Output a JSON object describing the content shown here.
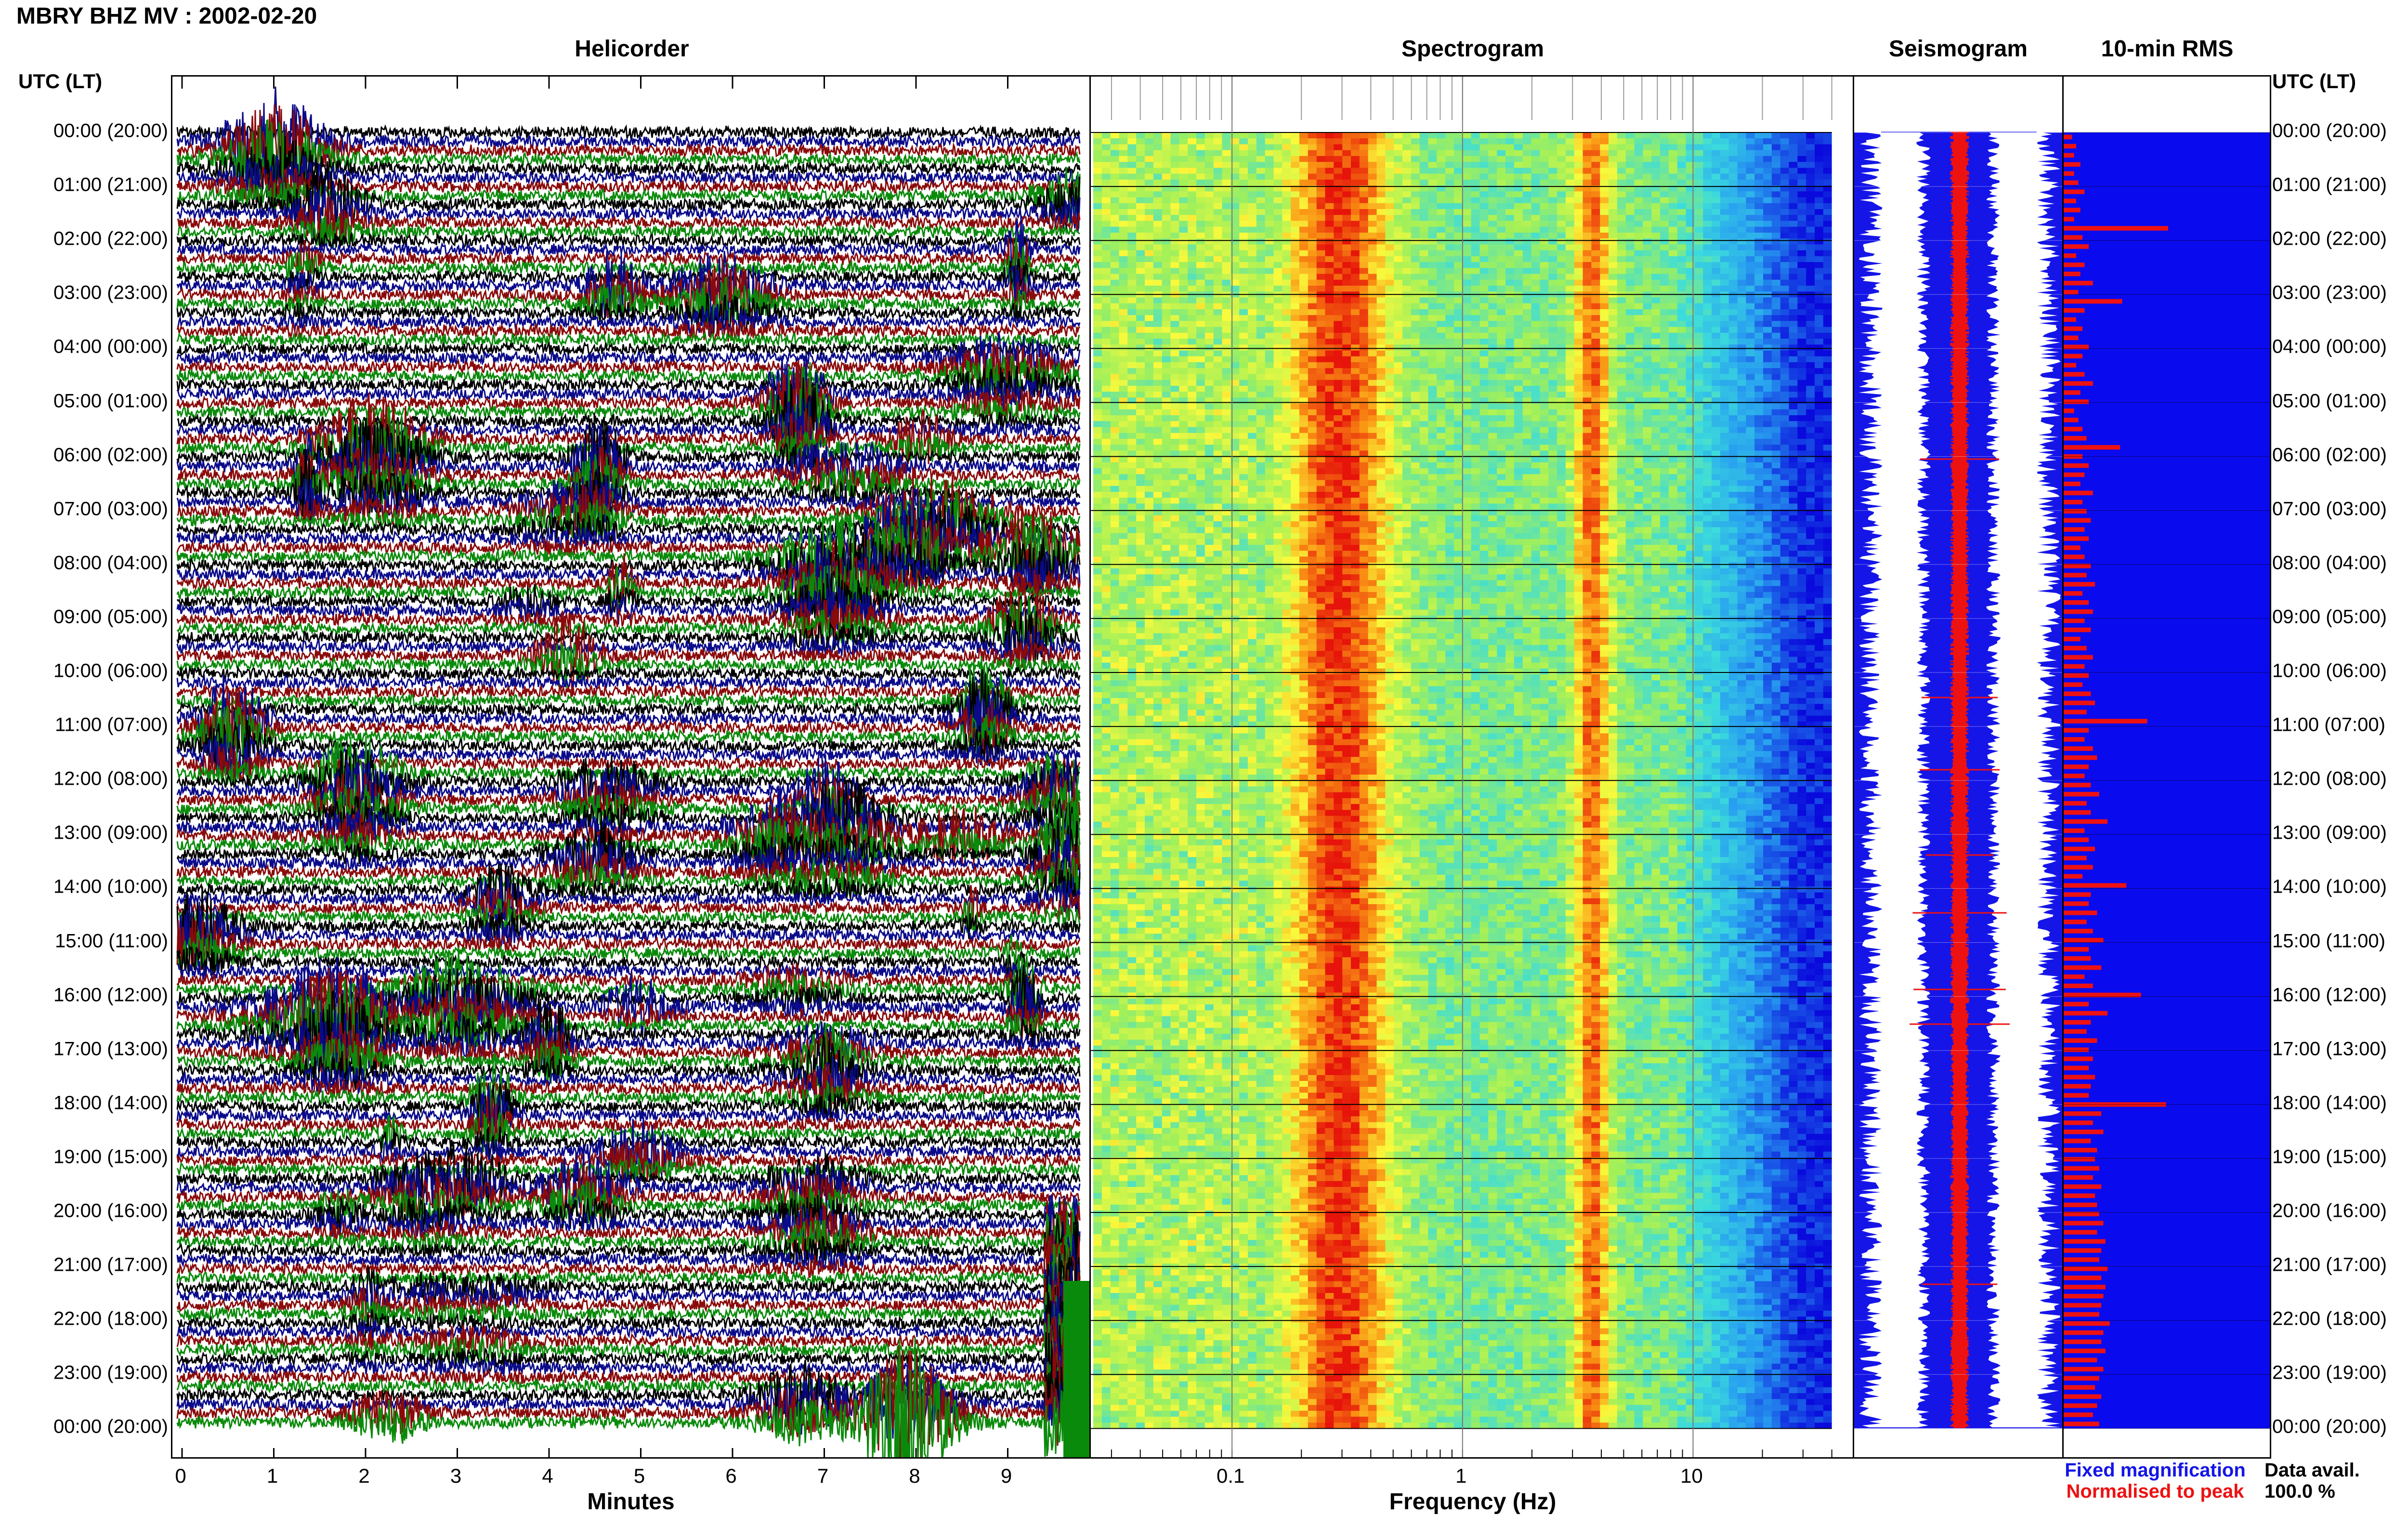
{
  "page": {
    "title": "MBRY BHZ MV : 2002-02-20"
  },
  "panels": {
    "helicorder": {
      "title": "Helicorder",
      "xlabel": "Minutes"
    },
    "spectrogram": {
      "title": "Spectrogram",
      "xlabel": "Frequency (Hz)"
    },
    "seismogram": {
      "title": "Seismogram"
    },
    "rms": {
      "title": "10-min RMS"
    }
  },
  "time_axis": {
    "header_left": "UTC (LT)",
    "header_right": "UTC (LT)",
    "labels": [
      "00:00 (20:00)",
      "01:00 (21:00)",
      "02:00 (22:00)",
      "03:00 (23:00)",
      "04:00 (00:00)",
      "05:00 (01:00)",
      "06:00 (02:00)",
      "07:00 (03:00)",
      "08:00 (04:00)",
      "09:00 (05:00)",
      "10:00 (06:00)",
      "11:00 (07:00)",
      "12:00 (08:00)",
      "13:00 (09:00)",
      "14:00 (10:00)",
      "15:00 (11:00)",
      "16:00 (12:00)",
      "17:00 (13:00)",
      "18:00 (14:00)",
      "19:00 (15:00)",
      "20:00 (16:00)",
      "21:00 (17:00)",
      "22:00 (18:00)",
      "23:00 (19:00)",
      "00:00 (20:00)"
    ]
  },
  "legend": {
    "fixed": "Fixed magnification",
    "fixed_color": "#1515e8",
    "normalised": "Normalised to peak",
    "normalised_color": "#ee1111",
    "avail_label": "Data avail.",
    "avail_value": "100.0 %"
  },
  "chart_data": [
    {
      "type": "line",
      "name": "helicorder",
      "xlabel": "Minutes",
      "xlim": [
        0,
        10
      ],
      "xticks": [
        0,
        1,
        2,
        3,
        4,
        5,
        6,
        7,
        8,
        9
      ],
      "trace_colors": [
        "#000000",
        "#0a0a8a",
        "#8a0a0a",
        "#0a8a0a"
      ]
    },
    {
      "type": "heatmap",
      "name": "spectrogram",
      "xlabel": "Frequency (Hz)",
      "xscale": "log",
      "xlim": [
        0.025,
        50
      ],
      "xticks": [
        0.1,
        1,
        10
      ],
      "xtick_labels": [
        "0.1",
        "1",
        "10"
      ]
    },
    {
      "type": "line",
      "name": "seismogram",
      "series": [
        {
          "name": "Fixed magnification",
          "color": "#1515e8"
        },
        {
          "name": "Normalised to peak",
          "color": "#ee1111"
        }
      ]
    },
    {
      "type": "bar",
      "name": "10-min RMS",
      "orientation": "horizontal",
      "background": "#0a0aee",
      "bar_color": "#ee1111",
      "xlim": [
        0,
        1
      ],
      "values": [
        0.04,
        0.06,
        0.05,
        0.08,
        0.05,
        0.07,
        0.1,
        0.06,
        0.08,
        0.05,
        0.5,
        0.09,
        0.12,
        0.06,
        0.1,
        0.08,
        0.14,
        0.07,
        0.28,
        0.1,
        0.06,
        0.09,
        0.07,
        0.12,
        0.09,
        0.06,
        0.1,
        0.14,
        0.08,
        0.12,
        0.05,
        0.07,
        0.09,
        0.11,
        0.27,
        0.09,
        0.12,
        0.1,
        0.08,
        0.14,
        0.09,
        0.11,
        0.13,
        0.1,
        0.12,
        0.08,
        0.1,
        0.13,
        0.11,
        0.15,
        0.09,
        0.12,
        0.14,
        0.1,
        0.13,
        0.08,
        0.11,
        0.14,
        0.1,
        0.12,
        0.09,
        0.13,
        0.15,
        0.11,
        0.4,
        0.12,
        0.1,
        0.14,
        0.16,
        0.12,
        0.1,
        0.13,
        0.17,
        0.11,
        0.13,
        0.21,
        0.1,
        0.12,
        0.15,
        0.11,
        0.14,
        0.09,
        0.3,
        0.13,
        0.12,
        0.16,
        0.11,
        0.14,
        0.19,
        0.12,
        0.13,
        0.18,
        0.1,
        0.14,
        0.37,
        0.12,
        0.21,
        0.13,
        0.11,
        0.16,
        0.12,
        0.14,
        0.12,
        0.15,
        0.13,
        0.12,
        0.49,
        0.18,
        0.14,
        0.19,
        0.13,
        0.16,
        0.15,
        0.17,
        0.14,
        0.18,
        0.15,
        0.16,
        0.17,
        0.19,
        0.16,
        0.2,
        0.18,
        0.17,
        0.21,
        0.18,
        0.2,
        0.19,
        0.18,
        0.17,
        0.22,
        0.19,
        0.18,
        0.2,
        0.16,
        0.19,
        0.17,
        0.15,
        0.18,
        0.16,
        0.14,
        0.17
      ]
    }
  ]
}
